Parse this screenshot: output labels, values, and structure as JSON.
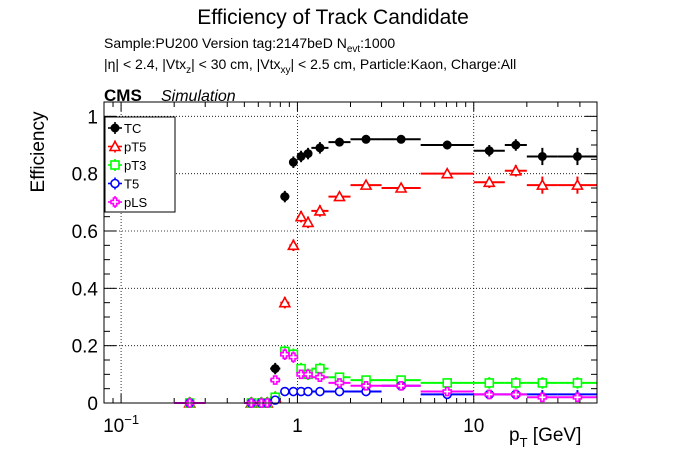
{
  "chart_data": {
    "type": "scatter",
    "title": "Efficiency of Track Candidate",
    "subtitle_line1": {
      "prefix": "Sample:PU200   Version tag:2147beD  N",
      "sub": "evt",
      "suffix": ":1000"
    },
    "subtitle_line2": {
      "p1": "|η| < 2.4, |Vtx",
      "s1": "z",
      "p2": "| < 30 cm, |Vtx",
      "s2": "xy",
      "p3": "| < 2.5 cm, Particle:Kaon, Charge:All"
    },
    "cms_label": "CMS",
    "simulation_label": "Simulation",
    "ylabel": "Efficiency",
    "xlabel": {
      "main": "p",
      "sub": "T",
      "unit": " [GeV]"
    },
    "x_scale": "log",
    "xlim": [
      0.08,
      50
    ],
    "ylim": [
      0,
      1.05
    ],
    "x_ticks": [
      {
        "value": 0.1,
        "base": "10",
        "exp": "−1"
      },
      {
        "value": 1,
        "base": "1",
        "exp": ""
      },
      {
        "value": 10,
        "base": "10",
        "exp": ""
      }
    ],
    "y_ticks": [
      {
        "value": 0,
        "label": "0"
      },
      {
        "value": 0.2,
        "label": "0.2"
      },
      {
        "value": 0.4,
        "label": "0.4"
      },
      {
        "value": 0.6,
        "label": "0.6"
      },
      {
        "value": 0.8,
        "label": "0.8"
      },
      {
        "value": 1,
        "label": "1"
      }
    ],
    "grid": true,
    "legend_position": "top-left",
    "x_bins": [
      [
        0.2,
        0.3
      ],
      [
        0.5,
        0.6
      ],
      [
        0.6,
        0.65
      ],
      [
        0.65,
        0.7
      ],
      [
        0.7,
        0.8
      ],
      [
        0.8,
        0.9
      ],
      [
        0.9,
        1.0
      ],
      [
        1.0,
        1.1
      ],
      [
        1.1,
        1.2
      ],
      [
        1.2,
        1.5
      ],
      [
        1.5,
        2.0
      ],
      [
        2.0,
        3.0
      ],
      [
        3.0,
        5.0
      ],
      [
        5.0,
        10.0
      ],
      [
        10.0,
        15.0
      ],
      [
        15.0,
        20.0
      ],
      [
        20.0,
        30.0
      ],
      [
        30.0,
        50.0
      ]
    ],
    "series": [
      {
        "name": "TC",
        "color": "#000000",
        "marker": "circle-filled",
        "values": [
          0,
          0,
          0,
          0,
          0.12,
          0.72,
          0.84,
          0.86,
          0.87,
          0.89,
          0.91,
          0.92,
          0.92,
          0.9,
          0.88,
          0.9,
          0.86,
          0.86
        ],
        "errors": [
          0.02,
          0.02,
          0.02,
          0.02,
          0.02,
          0.02,
          0.02,
          0.02,
          0.02,
          0.02,
          0.015,
          0.015,
          0.015,
          0.015,
          0.02,
          0.02,
          0.03,
          0.03
        ]
      },
      {
        "name": "pT5",
        "color": "#ff0000",
        "marker": "triangle-open",
        "values": [
          0,
          0,
          0,
          0,
          0.02,
          0.35,
          0.55,
          0.65,
          0.63,
          0.67,
          0.72,
          0.76,
          0.75,
          0.8,
          0.77,
          0.81,
          0.76,
          0.76
        ],
        "errors": [
          0.02,
          0.02,
          0.02,
          0.02,
          0.02,
          0.02,
          0.02,
          0.02,
          0.02,
          0.02,
          0.015,
          0.015,
          0.015,
          0.015,
          0.02,
          0.02,
          0.03,
          0.03
        ]
      },
      {
        "name": "pT3",
        "color": "#00ff00",
        "marker": "square-open",
        "values": [
          0,
          0,
          0,
          0,
          0.02,
          0.18,
          0.17,
          0.12,
          0.1,
          0.12,
          0.09,
          0.08,
          0.08,
          0.07,
          0.07,
          0.07,
          0.07,
          0.07
        ],
        "errors": [
          0.02,
          0.02,
          0.02,
          0.02,
          0.02,
          0.02,
          0.02,
          0.02,
          0.02,
          0.02,
          0.015,
          0.015,
          0.015,
          0.015,
          0.02,
          0.02,
          0.02,
          0.02
        ]
      },
      {
        "name": "T5",
        "color": "#0000ff",
        "marker": "circle-open",
        "values": [
          0,
          0,
          0,
          0,
          0.01,
          0.04,
          0.04,
          0.04,
          0.04,
          0.04,
          0.04,
          0.04,
          0.06,
          0.03,
          0.03,
          0.03,
          0.03,
          0.03
        ],
        "errors": [
          0.01,
          0.01,
          0.01,
          0.01,
          0.01,
          0.01,
          0.01,
          0.01,
          0.01,
          0.01,
          0.01,
          0.01,
          0.01,
          0.01,
          0.01,
          0.015,
          0.015,
          0.015
        ],
        "no_marker_from": 16
      },
      {
        "name": "pLS",
        "color": "#ff00ff",
        "marker": "cross-open",
        "values": [
          0,
          0,
          0,
          0,
          0.08,
          0.17,
          0.16,
          0.1,
          0.1,
          0.09,
          0.07,
          0.06,
          0.06,
          0.04,
          0.03,
          0.03,
          0.02,
          0.02
        ],
        "errors": [
          0.01,
          0.01,
          0.01,
          0.01,
          0.015,
          0.02,
          0.02,
          0.015,
          0.015,
          0.015,
          0.01,
          0.01,
          0.01,
          0.01,
          0.01,
          0.01,
          0.01,
          0.01
        ]
      }
    ]
  }
}
